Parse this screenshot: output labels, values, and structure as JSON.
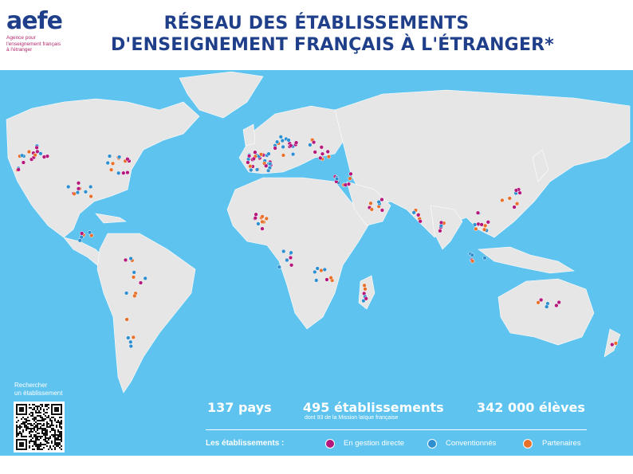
{
  "header": {
    "logo_word": "aefe",
    "logo_subtitle": "Agence pour\nl'enseignement français\nà l'étranger",
    "title_line1": "RÉSEAU DES ÉTABLISSEMENTS",
    "title_line2": "D'ENSEIGNEMENT FRANÇAIS À L'ÉTRANGER*"
  },
  "qr": {
    "label": "Rechercher\nun établissement"
  },
  "stats": {
    "countries": "137 pays",
    "schools": "495 établissements",
    "schools_note": "dont 93 de la Mission laïque française",
    "students": "342 000 élèves"
  },
  "legend": {
    "title": "Les établissements :",
    "items": [
      {
        "label": "En gestion directe",
        "color": "#b5177c"
      },
      {
        "label": "Conventionnés",
        "color": "#2e8fd0"
      },
      {
        "label": "Partenaires",
        "color": "#e8702a"
      }
    ]
  },
  "colors": {
    "ocean": "#5ec3ee",
    "land": "#e6e6e6",
    "brand": "#1f3f8a",
    "accent": "#b3276c"
  }
}
